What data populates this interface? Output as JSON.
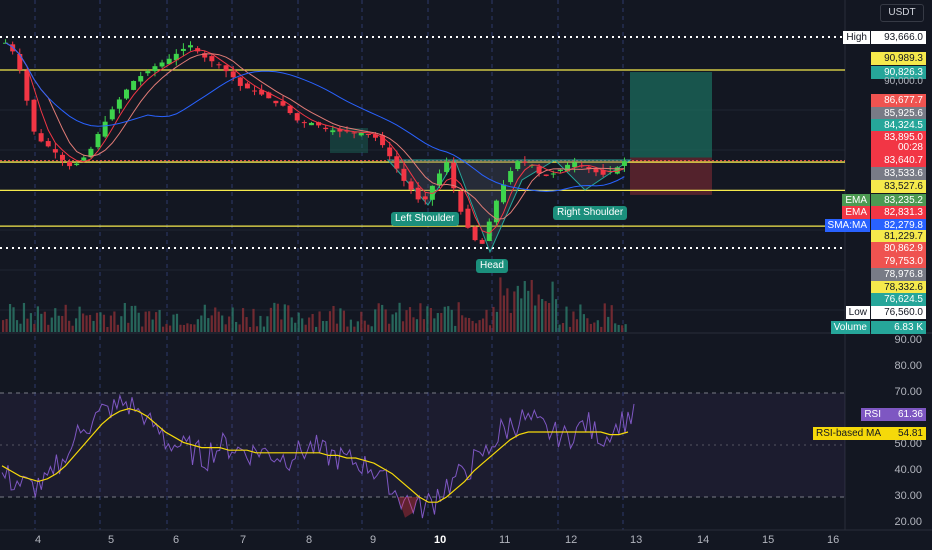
{
  "currency": "USDT",
  "colors": {
    "up": "#26a69a",
    "down": "#ef5350",
    "green_candle": "#3ed34c",
    "red_candle": "#f23645",
    "yellow": "#f5e94c",
    "ema_fast": "#f23645",
    "ema_slow": "#e07b76",
    "sma": "#2962ff",
    "rsi_line": "#7e57c2",
    "rsi_ma": "#f5d90a"
  },
  "price_badges": [
    {
      "label": "High",
      "value": "93,666.0",
      "bg": "#ffffff",
      "fg": "#131722",
      "lbg": "#ffffff",
      "lfg": "#131722"
    },
    {
      "label": "",
      "value": "90,989.3",
      "bg": "#f5e94c",
      "fg": "#131722"
    },
    {
      "label": "",
      "value": "90,826.3",
      "bg": "#26a69a",
      "fg": "#ffffff"
    },
    {
      "label": "",
      "value": "90,000.0",
      "bg": "transparent",
      "fg": "#b2b5be"
    },
    {
      "label": "",
      "value": "86,677.7",
      "bg": "#ef5350",
      "fg": "#ffffff"
    },
    {
      "label": "",
      "value": "85,925.6",
      "bg": "#787b86",
      "fg": "#ffffff"
    },
    {
      "label": "",
      "value": "84,324.5",
      "bg": "#26a69a",
      "fg": "#ffffff"
    },
    {
      "label": "",
      "value": "83,895.0",
      "bg": "#f23645",
      "fg": "#ffffff"
    },
    {
      "label": "",
      "value": "00:28",
      "bg": "#f23645",
      "fg": "#ffffff"
    },
    {
      "label": "",
      "value": "83,640.7",
      "bg": "#f23645",
      "fg": "#ffffff"
    },
    {
      "label": "",
      "value": "83,533.6",
      "bg": "#787b86",
      "fg": "#ffffff"
    },
    {
      "label": "",
      "value": "83,527.6",
      "bg": "#f5e94c",
      "fg": "#131722"
    },
    {
      "label": "EMA",
      "value": "83,235.2",
      "bg": "#4c9a52",
      "fg": "#ffffff",
      "lbg": "#4c9a52",
      "lfg": "#ffffff"
    },
    {
      "label": "EMA",
      "value": "82,831.3",
      "bg": "#f23645",
      "fg": "#ffffff",
      "lbg": "#f23645",
      "lfg": "#ffffff"
    },
    {
      "label": "SMA:MA",
      "value": "82,279.8",
      "bg": "#2962ff",
      "fg": "#ffffff",
      "lbg": "#2962ff",
      "lfg": "#ffffff"
    },
    {
      "label": "",
      "value": "81,229.7",
      "bg": "#f5e94c",
      "fg": "#131722"
    },
    {
      "label": "",
      "value": "80,862.9",
      "bg": "#ef5350",
      "fg": "#ffffff"
    },
    {
      "label": "",
      "value": "79,753.0",
      "bg": "#ef5350",
      "fg": "#ffffff"
    },
    {
      "label": "",
      "value": "78,976.8",
      "bg": "#787b86",
      "fg": "#ffffff"
    },
    {
      "label": "",
      "value": "78,332.6",
      "bg": "#f5e94c",
      "fg": "#131722"
    },
    {
      "label": "",
      "value": "76,624.5",
      "bg": "#26a69a",
      "fg": "#ffffff"
    },
    {
      "label": "Low",
      "value": "76,560.0",
      "bg": "#ffffff",
      "fg": "#131722",
      "lbg": "#ffffff",
      "lfg": "#131722"
    },
    {
      "label": "Volume",
      "value": "6.83 K",
      "bg": "#26a69a",
      "fg": "#ffffff",
      "lbg": "#26a69a",
      "lfg": "#ffffff"
    }
  ],
  "rsi_axis": [
    "90.00",
    "80.00",
    "70.00",
    "60.00",
    "50.00",
    "40.00",
    "30.00",
    "20.00"
  ],
  "rsi_badges": [
    {
      "label": "RSI",
      "value": "61.36",
      "bg": "#7e57c2",
      "fg": "#ffffff"
    },
    {
      "label": "RSI-based MA",
      "value": "54.81",
      "bg": "#f5d90a",
      "fg": "#131722"
    }
  ],
  "x_axis": [
    "4",
    "5",
    "6",
    "7",
    "8",
    "9",
    "10",
    "11",
    "12",
    "13",
    "14",
    "15",
    "16"
  ],
  "x_axis_bold": "10",
  "patterns": {
    "left_shoulder": "Left Shoulder",
    "head": "Head",
    "right_shoulder": "Right Shoulder"
  },
  "chart_data": {
    "type": "candlestick",
    "symbol_quote": "USDT",
    "price_levels_horizontal": {
      "white_dotted": [
        93666.0,
        76560.0
      ],
      "yellow": [
        90989.3,
        83527.6,
        81229.7,
        78332.6
      ]
    },
    "high": 93666.0,
    "low": 76560.0,
    "last_price": 83640.7,
    "indicators": {
      "ema_fast": 83235.2,
      "ema_slow": 82831.3,
      "sma_ma": 82279.8,
      "volume": "6.83 K",
      "rsi": 61.36,
      "rsi_based_ma": 54.81
    },
    "x_ticks": [
      "4",
      "5",
      "6",
      "7",
      "8",
      "9",
      "10",
      "11",
      "12",
      "13",
      "14",
      "15",
      "16"
    ],
    "rsi_ticks": [
      90,
      80,
      70,
      60,
      50,
      40,
      30,
      20
    ],
    "trade_box": {
      "target": 90826.3,
      "entry": 83895.0,
      "stop": 80862.9
    },
    "close_series": [
      93200,
      92500,
      91000,
      88500,
      86000,
      85200,
      84800,
      84300,
      83700,
      83200,
      83400,
      83900,
      84600,
      85800,
      86800,
      87800,
      88600,
      89400,
      90100,
      90500,
      90900,
      91300,
      91600,
      91900,
      92300,
      92700,
      93000,
      92500,
      92000,
      91700,
      91400,
      90900,
      90400,
      89700,
      89500,
      89300,
      89000,
      88700,
      88300,
      88100,
      87500,
      86900,
      86700,
      86700,
      86500,
      86200,
      86100,
      86000,
      86000,
      85900,
      85900,
      85800,
      85500,
      84900,
      84000,
      83000,
      82000,
      81300,
      80500,
      80500,
      81600,
      82600,
      83500,
      81400,
      79500,
      78200,
      77200,
      76900,
      78700,
      80400,
      81700,
      82800,
      83600,
      83500,
      83300,
      82600,
      82400,
      82600,
      82900,
      83300,
      83500,
      83200,
      83000,
      82700,
      82500,
      82800,
      83100,
      83600
    ],
    "rsi_series": [
      38,
      36,
      35,
      34,
      35,
      37,
      42,
      48,
      54,
      58,
      61,
      63,
      64,
      66,
      65,
      62,
      58,
      55,
      51,
      50,
      49,
      47,
      45,
      48,
      50,
      49,
      48,
      47,
      48,
      47,
      46,
      45,
      47,
      48,
      49,
      47,
      46,
      45,
      44,
      43,
      42,
      40,
      36,
      32,
      29,
      27,
      26,
      28,
      32,
      35,
      38,
      41,
      44,
      47,
      52,
      56,
      58,
      60,
      59,
      57,
      55,
      54,
      53,
      56,
      58,
      55,
      53,
      56,
      59,
      61
    ],
    "rsi_ma_series": [
      42,
      40,
      38,
      37,
      36,
      37,
      39,
      42,
      46,
      50,
      54,
      58,
      61,
      63,
      64,
      63,
      61,
      58,
      55,
      53,
      51,
      50,
      49,
      49,
      49,
      48,
      48,
      48,
      47,
      47,
      47,
      47,
      47,
      47,
      47,
      47,
      46,
      46,
      45,
      45,
      44,
      43,
      41,
      39,
      36,
      33,
      30,
      28,
      28,
      30,
      33,
      36,
      40,
      43,
      46,
      49,
      52,
      54,
      55,
      55,
      55,
      55,
      55,
      55,
      55,
      55,
      55,
      54,
      54,
      55
    ]
  }
}
